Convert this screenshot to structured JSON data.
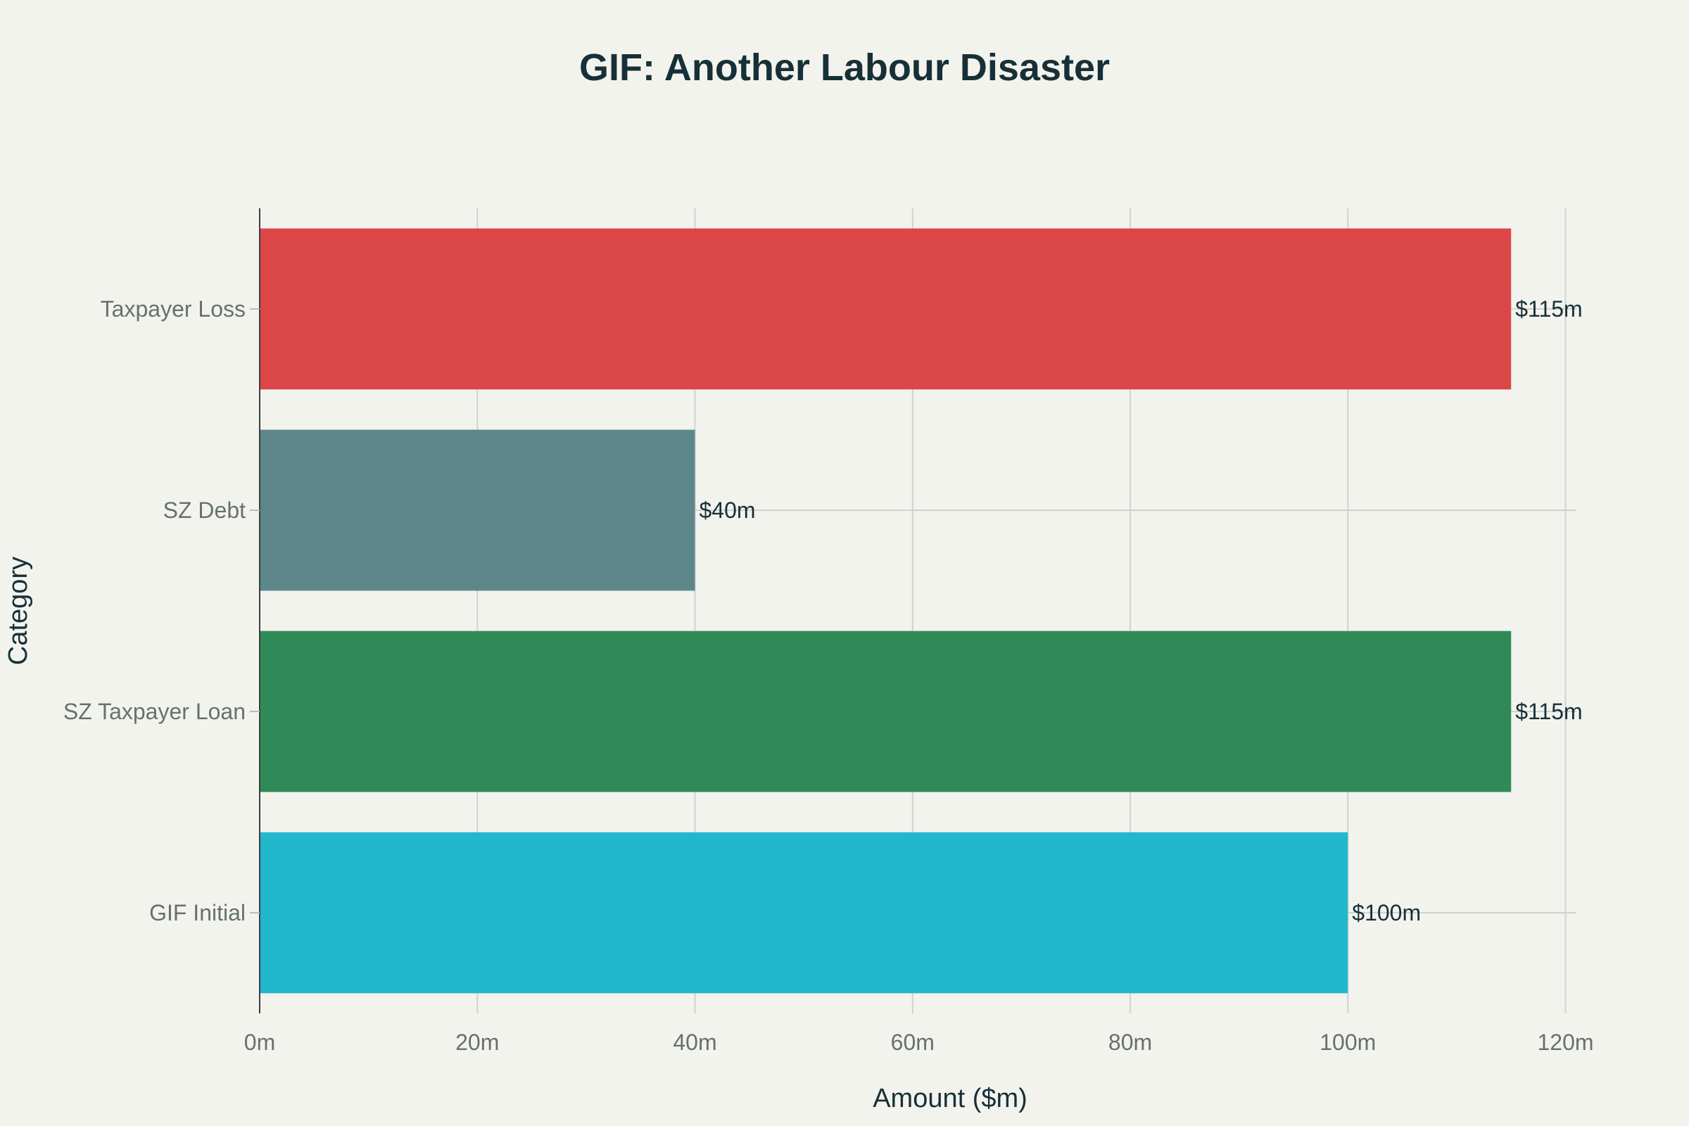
{
  "chart_data": {
    "type": "bar",
    "orientation": "horizontal",
    "title": "GIF: Another Labour Disaster",
    "xlabel": "Amount ($m)",
    "ylabel": "Category",
    "categories": [
      "GIF Initial",
      "SZ Taxpayer Loan",
      "SZ Debt",
      "Taxpayer Loss"
    ],
    "values": [
      100,
      115,
      40,
      115
    ],
    "data_labels": [
      "$100m",
      "$115m",
      "$40m",
      "$115m"
    ],
    "colors": [
      "#21b8cd",
      "#2f8a58",
      "#5e878c",
      "#db4748"
    ],
    "xlim": [
      0,
      121
    ],
    "x_ticks": [
      0,
      20,
      40,
      60,
      80,
      100,
      120
    ],
    "x_tick_labels": [
      "0m",
      "20m",
      "40m",
      "60m",
      "80m",
      "100m",
      "120m"
    ],
    "grid": true,
    "legend": "none"
  }
}
